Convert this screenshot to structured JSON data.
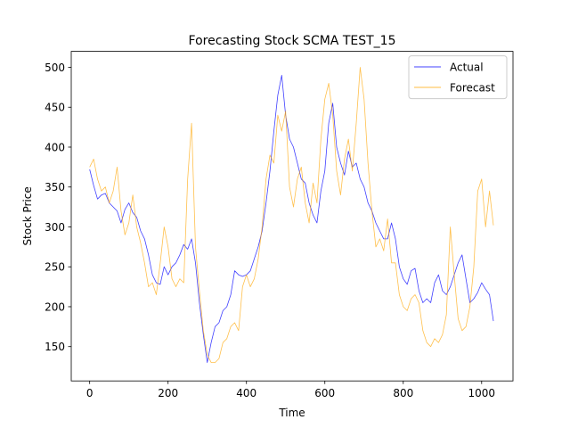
{
  "chart_data": {
    "type": "line",
    "title": "Forecasting Stock SCMA TEST_15",
    "xlabel": "Time",
    "ylabel": "Stock Price",
    "xlim": [
      -47,
      1080
    ],
    "ylim": [
      107,
      520
    ],
    "xticks": [
      0,
      200,
      400,
      600,
      800,
      1000
    ],
    "yticks": [
      150,
      200,
      250,
      300,
      350,
      400,
      450,
      500
    ],
    "grid": false,
    "legend_position": "top-right",
    "series": [
      {
        "name": "Actual",
        "color": "#0000ff",
        "points": [
          [
            0,
            372
          ],
          [
            10,
            352
          ],
          [
            20,
            335
          ],
          [
            30,
            340
          ],
          [
            40,
            342
          ],
          [
            50,
            330
          ],
          [
            60,
            325
          ],
          [
            70,
            320
          ],
          [
            80,
            305
          ],
          [
            90,
            322
          ],
          [
            100,
            330
          ],
          [
            110,
            318
          ],
          [
            120,
            312
          ],
          [
            130,
            295
          ],
          [
            140,
            285
          ],
          [
            150,
            265
          ],
          [
            160,
            240
          ],
          [
            170,
            230
          ],
          [
            180,
            228
          ],
          [
            190,
            250
          ],
          [
            200,
            240
          ],
          [
            210,
            250
          ],
          [
            220,
            255
          ],
          [
            230,
            265
          ],
          [
            240,
            278
          ],
          [
            250,
            272
          ],
          [
            260,
            285
          ],
          [
            270,
            255
          ],
          [
            280,
            205
          ],
          [
            290,
            165
          ],
          [
            300,
            130
          ],
          [
            310,
            155
          ],
          [
            320,
            175
          ],
          [
            330,
            180
          ],
          [
            340,
            195
          ],
          [
            350,
            200
          ],
          [
            360,
            215
          ],
          [
            370,
            245
          ],
          [
            380,
            240
          ],
          [
            390,
            238
          ],
          [
            400,
            240
          ],
          [
            410,
            245
          ],
          [
            420,
            260
          ],
          [
            430,
            275
          ],
          [
            440,
            295
          ],
          [
            450,
            330
          ],
          [
            460,
            370
          ],
          [
            470,
            420
          ],
          [
            480,
            465
          ],
          [
            490,
            490
          ],
          [
            500,
            440
          ],
          [
            510,
            410
          ],
          [
            520,
            400
          ],
          [
            530,
            380
          ],
          [
            540,
            360
          ],
          [
            550,
            355
          ],
          [
            560,
            330
          ],
          [
            570,
            315
          ],
          [
            580,
            305
          ],
          [
            590,
            345
          ],
          [
            600,
            370
          ],
          [
            610,
            430
          ],
          [
            620,
            455
          ],
          [
            630,
            400
          ],
          [
            640,
            380
          ],
          [
            650,
            365
          ],
          [
            660,
            395
          ],
          [
            670,
            375
          ],
          [
            680,
            380
          ],
          [
            690,
            360
          ],
          [
            700,
            350
          ],
          [
            710,
            330
          ],
          [
            720,
            320
          ],
          [
            730,
            305
          ],
          [
            740,
            295
          ],
          [
            750,
            285
          ],
          [
            760,
            285
          ],
          [
            770,
            305
          ],
          [
            780,
            285
          ],
          [
            790,
            250
          ],
          [
            800,
            235
          ],
          [
            810,
            228
          ],
          [
            820,
            245
          ],
          [
            830,
            248
          ],
          [
            840,
            220
          ],
          [
            850,
            205
          ],
          [
            860,
            210
          ],
          [
            870,
            205
          ],
          [
            880,
            230
          ],
          [
            890,
            240
          ],
          [
            900,
            220
          ],
          [
            910,
            215
          ],
          [
            920,
            225
          ],
          [
            930,
            240
          ],
          [
            940,
            255
          ],
          [
            950,
            265
          ],
          [
            960,
            235
          ],
          [
            970,
            205
          ],
          [
            980,
            210
          ],
          [
            990,
            218
          ],
          [
            1000,
            230
          ],
          [
            1010,
            222
          ],
          [
            1020,
            215
          ],
          [
            1030,
            182
          ]
        ]
      },
      {
        "name": "Forecast",
        "color": "#ffa500",
        "points": [
          [
            0,
            375
          ],
          [
            10,
            385
          ],
          [
            20,
            360
          ],
          [
            30,
            345
          ],
          [
            40,
            350
          ],
          [
            50,
            330
          ],
          [
            60,
            345
          ],
          [
            70,
            375
          ],
          [
            80,
            320
          ],
          [
            90,
            290
          ],
          [
            100,
            305
          ],
          [
            110,
            340
          ],
          [
            120,
            300
          ],
          [
            130,
            280
          ],
          [
            140,
            255
          ],
          [
            150,
            225
          ],
          [
            160,
            230
          ],
          [
            170,
            215
          ],
          [
            180,
            255
          ],
          [
            190,
            300
          ],
          [
            200,
            275
          ],
          [
            210,
            235
          ],
          [
            220,
            225
          ],
          [
            230,
            235
          ],
          [
            240,
            230
          ],
          [
            250,
            360
          ],
          [
            260,
            430
          ],
          [
            270,
            275
          ],
          [
            280,
            220
          ],
          [
            290,
            170
          ],
          [
            300,
            140
          ],
          [
            310,
            130
          ],
          [
            320,
            130
          ],
          [
            330,
            135
          ],
          [
            340,
            155
          ],
          [
            350,
            160
          ],
          [
            360,
            175
          ],
          [
            370,
            180
          ],
          [
            380,
            170
          ],
          [
            390,
            225
          ],
          [
            400,
            240
          ],
          [
            410,
            225
          ],
          [
            420,
            235
          ],
          [
            430,
            260
          ],
          [
            440,
            300
          ],
          [
            450,
            360
          ],
          [
            460,
            390
          ],
          [
            470,
            380
          ],
          [
            480,
            440
          ],
          [
            490,
            420
          ],
          [
            500,
            445
          ],
          [
            510,
            350
          ],
          [
            520,
            325
          ],
          [
            530,
            360
          ],
          [
            540,
            375
          ],
          [
            550,
            330
          ],
          [
            560,
            305
          ],
          [
            570,
            355
          ],
          [
            580,
            330
          ],
          [
            590,
            410
          ],
          [
            600,
            460
          ],
          [
            610,
            480
          ],
          [
            620,
            440
          ],
          [
            630,
            370
          ],
          [
            640,
            340
          ],
          [
            650,
            385
          ],
          [
            660,
            410
          ],
          [
            670,
            370
          ],
          [
            680,
            430
          ],
          [
            690,
            500
          ],
          [
            700,
            460
          ],
          [
            710,
            380
          ],
          [
            720,
            320
          ],
          [
            730,
            275
          ],
          [
            740,
            285
          ],
          [
            750,
            270
          ],
          [
            760,
            310
          ],
          [
            770,
            255
          ],
          [
            780,
            255
          ],
          [
            790,
            215
          ],
          [
            800,
            200
          ],
          [
            810,
            195
          ],
          [
            820,
            210
          ],
          [
            830,
            215
          ],
          [
            840,
            205
          ],
          [
            850,
            170
          ],
          [
            860,
            155
          ],
          [
            870,
            150
          ],
          [
            880,
            160
          ],
          [
            890,
            155
          ],
          [
            900,
            165
          ],
          [
            910,
            190
          ],
          [
            920,
            300
          ],
          [
            930,
            240
          ],
          [
            940,
            185
          ],
          [
            950,
            170
          ],
          [
            960,
            175
          ],
          [
            970,
            200
          ],
          [
            980,
            250
          ],
          [
            990,
            345
          ],
          [
            1000,
            360
          ],
          [
            1010,
            300
          ],
          [
            1020,
            345
          ],
          [
            1030,
            302
          ]
        ]
      }
    ]
  }
}
